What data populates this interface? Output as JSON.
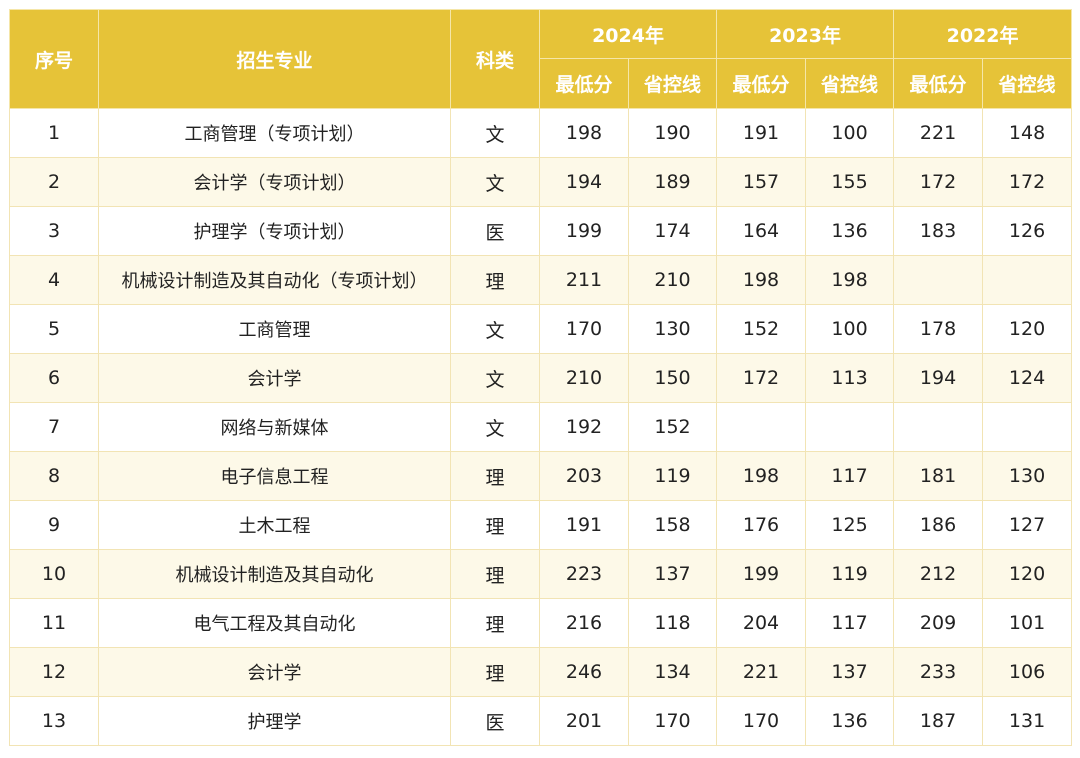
{
  "header": {
    "index": "序号",
    "major": "招生专业",
    "category": "科类",
    "years": [
      "2024年",
      "2023年",
      "2022年"
    ],
    "min_score": "最低分",
    "control_line": "省控线"
  },
  "rows": [
    {
      "no": "1",
      "major": "工商管理（专项计划）",
      "cat": "文",
      "s2024": "198",
      "c2024": "190",
      "s2023": "191",
      "c2023": "100",
      "s2022": "221",
      "c2022": "148"
    },
    {
      "no": "2",
      "major": "会计学（专项计划）",
      "cat": "文",
      "s2024": "194",
      "c2024": "189",
      "s2023": "157",
      "c2023": "155",
      "s2022": "172",
      "c2022": "172"
    },
    {
      "no": "3",
      "major": "护理学（专项计划）",
      "cat": "医",
      "s2024": "199",
      "c2024": "174",
      "s2023": "164",
      "c2023": "136",
      "s2022": "183",
      "c2022": "126"
    },
    {
      "no": "4",
      "major": "机械设计制造及其自动化（专项计划）",
      "cat": "理",
      "s2024": "211",
      "c2024": "210",
      "s2023": "198",
      "c2023": "198",
      "s2022": "",
      "c2022": ""
    },
    {
      "no": "5",
      "major": "工商管理",
      "cat": "文",
      "s2024": "170",
      "c2024": "130",
      "s2023": "152",
      "c2023": "100",
      "s2022": "178",
      "c2022": "120"
    },
    {
      "no": "6",
      "major": "会计学",
      "cat": "文",
      "s2024": "210",
      "c2024": "150",
      "s2023": "172",
      "c2023": "113",
      "s2022": "194",
      "c2022": "124"
    },
    {
      "no": "7",
      "major": "网络与新媒体",
      "cat": "文",
      "s2024": "192",
      "c2024": "152",
      "s2023": "",
      "c2023": "",
      "s2022": "",
      "c2022": ""
    },
    {
      "no": "8",
      "major": "电子信息工程",
      "cat": "理",
      "s2024": "203",
      "c2024": "119",
      "s2023": "198",
      "c2023": "117",
      "s2022": "181",
      "c2022": "130"
    },
    {
      "no": "9",
      "major": "土木工程",
      "cat": "理",
      "s2024": "191",
      "c2024": "158",
      "s2023": "176",
      "c2023": "125",
      "s2022": "186",
      "c2022": "127"
    },
    {
      "no": "10",
      "major": "机械设计制造及其自动化",
      "cat": "理",
      "s2024": "223",
      "c2024": "137",
      "s2023": "199",
      "c2023": "119",
      "s2022": "212",
      "c2022": "120"
    },
    {
      "no": "11",
      "major": "电气工程及其自动化",
      "cat": "理",
      "s2024": "216",
      "c2024": "118",
      "s2023": "204",
      "c2023": "117",
      "s2022": "209",
      "c2022": "101"
    },
    {
      "no": "12",
      "major": "会计学",
      "cat": "理",
      "s2024": "246",
      "c2024": "134",
      "s2023": "221",
      "c2023": "137",
      "s2022": "233",
      "c2022": "106"
    },
    {
      "no": "13",
      "major": "护理学",
      "cat": "医",
      "s2024": "201",
      "c2024": "170",
      "s2023": "170",
      "c2023": "136",
      "s2022": "187",
      "c2022": "131"
    }
  ]
}
